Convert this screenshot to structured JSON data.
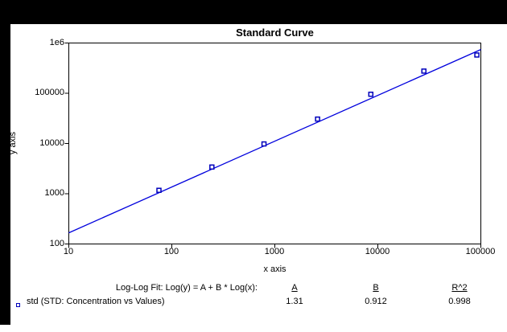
{
  "frame": {
    "background_color": "#000000",
    "canvas_color": "#ffffff"
  },
  "chart_data": {
    "type": "scatter",
    "title": "Standard Curve",
    "xlabel": "x axis",
    "ylabel": "y axis",
    "xscale": "log",
    "yscale": "log",
    "xlim": [
      10,
      100000
    ],
    "ylim": [
      100,
      1000000
    ],
    "grid": false,
    "xticks": [
      10,
      100,
      1000,
      10000,
      100000
    ],
    "xtick_labels": [
      "10",
      "100",
      "1000",
      "10000",
      "100000"
    ],
    "yticks": [
      1000000,
      100000,
      10000,
      1000,
      100
    ],
    "ytick_labels": [
      "1e6",
      "100000",
      "10000",
      "1000",
      "100"
    ],
    "series": [
      {
        "name": "std (STD: Concentration vs Values)",
        "marker": "open-square",
        "marker_color": "#0000bb",
        "points": [
          [
            75,
            1170
          ],
          [
            245,
            3400
          ],
          [
            785,
            9800
          ],
          [
            2600,
            30600
          ],
          [
            8550,
            95500
          ],
          [
            28000,
            276000
          ],
          [
            91500,
            577000
          ]
        ]
      }
    ],
    "fit": {
      "label": "Log-Log Fit: Log(y) = A + B * Log(x):",
      "a_header": "A",
      "b_header": "B",
      "r2_header": "R^2",
      "A": 1.31,
      "B": 0.912,
      "R2": 0.998,
      "line_color": "#0000dd",
      "x_range": [
        10,
        100000
      ]
    },
    "legend": {
      "position": "bottom-left",
      "marker_color": "#0000bb",
      "label": "std (STD: Concentration vs Values)"
    }
  }
}
